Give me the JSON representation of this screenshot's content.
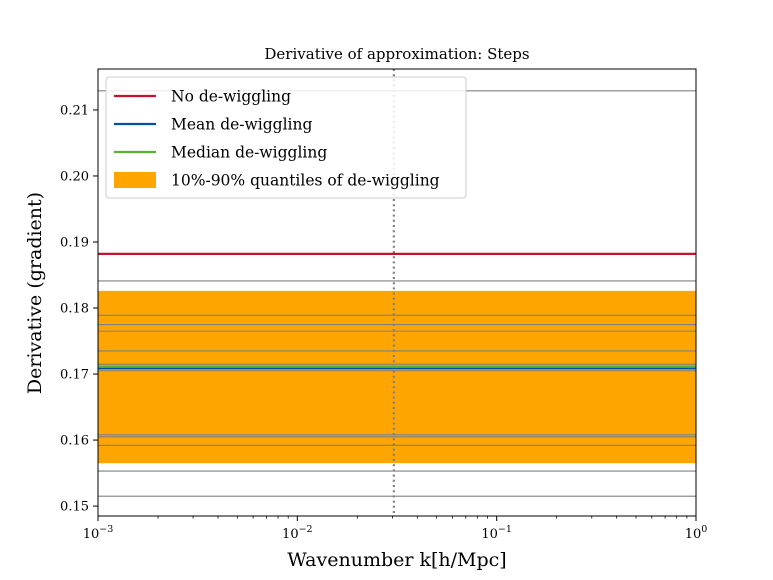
{
  "chart_data": {
    "type": "line",
    "title": "Derivative of approximation: Steps",
    "xlabel": "Wavenumber k[h/Mpc]",
    "ylabel": "Derivative (gradient)",
    "xscale": "log",
    "xlim": [
      0.001,
      1
    ],
    "ylim": [
      0.1485,
      0.2162
    ],
    "x_ticks": [
      {
        "value": 0.001,
        "base": "10",
        "exp": "−3"
      },
      {
        "value": 0.01,
        "base": "10",
        "exp": "−2"
      },
      {
        "value": 0.1,
        "base": "10",
        "exp": "−1"
      },
      {
        "value": 1,
        "base": "10",
        "exp": "0"
      }
    ],
    "y_ticks": [
      {
        "value": 0.15,
        "label": "0.15"
      },
      {
        "value": 0.16,
        "label": "0.16"
      },
      {
        "value": 0.17,
        "label": "0.17"
      },
      {
        "value": 0.18,
        "label": "0.18"
      },
      {
        "value": 0.19,
        "label": "0.19"
      },
      {
        "value": 0.2,
        "label": "0.20"
      },
      {
        "value": 0.21,
        "label": "0.21"
      }
    ],
    "quantile_band": {
      "name": "10%-90% quantiles of de-wiggling",
      "lower": 0.1565,
      "upper": 0.1826,
      "color": "#ffa500"
    },
    "individual_lines": {
      "color": "#808080",
      "values": [
        0.2129,
        0.1841,
        0.1789,
        0.1775,
        0.1765,
        0.1735,
        0.1715,
        0.1705,
        0.1608,
        0.1605,
        0.1592,
        0.1553,
        0.1515
      ]
    },
    "vertical_marker": {
      "x": 0.0305,
      "style": "dotted",
      "color": "#808080"
    },
    "series": [
      {
        "name": "No de-wiggling",
        "value": 0.1882,
        "color": "#c8102e"
      },
      {
        "name": "Mean de-wiggling",
        "value": 0.1709,
        "color": "#0050a0"
      },
      {
        "name": "Median de-wiggling",
        "value": 0.1711,
        "color": "#5ab030"
      }
    ],
    "legend": {
      "position": "top-left"
    }
  }
}
